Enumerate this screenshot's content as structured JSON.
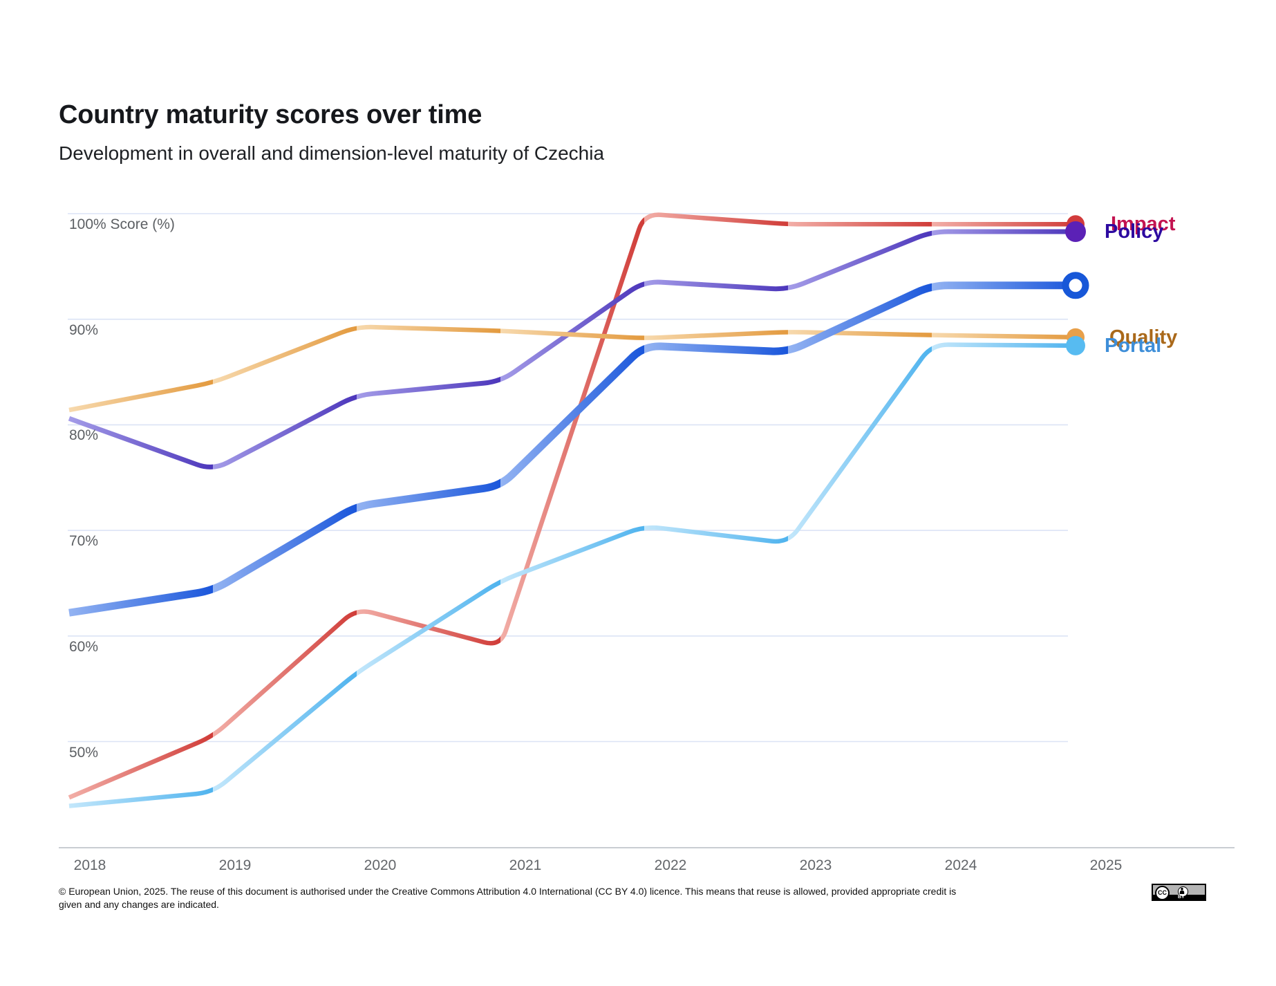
{
  "header": {
    "title": "Country maturity scores over time",
    "subtitle": "Development in overall and dimension-level maturity of Czechia"
  },
  "chart_data": {
    "type": "line",
    "x": [
      2018,
      2019,
      2020,
      2021,
      2022,
      2023,
      2024,
      2025
    ],
    "x_tick_labels": [
      "2018",
      "2019",
      "2020",
      "2021",
      "2022",
      "2023",
      "2024",
      "2025"
    ],
    "y_tick_values": [
      100,
      90,
      80,
      70,
      60,
      50
    ],
    "y_tick_labels": [
      "100% Score (%)",
      "90%",
      "80%",
      "70%",
      "60%",
      "50%"
    ],
    "ylim": [
      40,
      101
    ],
    "grid": true,
    "legend_position": "right-end-of-lines",
    "gridline_color": "#dbe3f5",
    "axis_color": "#c9cdd2",
    "series": [
      {
        "name": "impact",
        "label": "Impact",
        "values": [
          44.7,
          50.5,
          62.6,
          59.0,
          100.0,
          99.0,
          99.0,
          99.0
        ],
        "color": "#d03c38",
        "color_light": "#f2aea7",
        "label_color": "#c31350",
        "marker": "dot",
        "marker_color": "#d23b3b",
        "line_width": 6.5
      },
      {
        "name": "policy",
        "label": "Policy",
        "values": [
          80.6,
          75.7,
          82.8,
          84.1,
          93.6,
          92.8,
          98.3,
          98.3
        ],
        "color": "#4c36bb",
        "color_light": "#a49ce8",
        "label_color": "#2d0aa0",
        "marker": "dot",
        "marker_color": "#5b21b6",
        "line_width": 7
      },
      {
        "name": "quality",
        "label": "Quality",
        "values": [
          81.4,
          84.0,
          89.3,
          88.9,
          88.2,
          88.8,
          88.5,
          88.3
        ],
        "color": "#e39a3f",
        "color_light": "#f7d9ad",
        "label_color": "#aa691a",
        "marker": "dot",
        "marker_color": "#e8a04a",
        "line_width": 6.5
      },
      {
        "name": "portal",
        "label": "Portal",
        "values": [
          43.9,
          45.2,
          56.5,
          65.2,
          70.4,
          68.8,
          87.6,
          87.5
        ],
        "color": "#4fb3ee",
        "color_light": "#c3e7fb",
        "label_color": "#3e8ed8",
        "marker": "dot",
        "marker_color": "#57bbf1",
        "line_width": 6.5
      },
      {
        "name": "overall",
        "label": "",
        "values": [
          62.2,
          64.3,
          72.3,
          74.2,
          87.5,
          86.9,
          93.2,
          93.2
        ],
        "color": "#1a56db",
        "color_light": "#93b3f2",
        "label_color": "#1a56db",
        "marker": "ring",
        "marker_color": "#1757d8",
        "line_width": 11
      }
    ]
  },
  "footer": {
    "line1": "© European Union, 2025. The reuse of this document is authorised under the Creative Commons Attribution 4.0 International (CC BY 4.0) licence. This means that reuse is allowed, provided appropriate credit is",
    "line2": "given and any changes are indicated.",
    "cc_badge": {
      "cc": "CC",
      "by": "BY"
    }
  }
}
